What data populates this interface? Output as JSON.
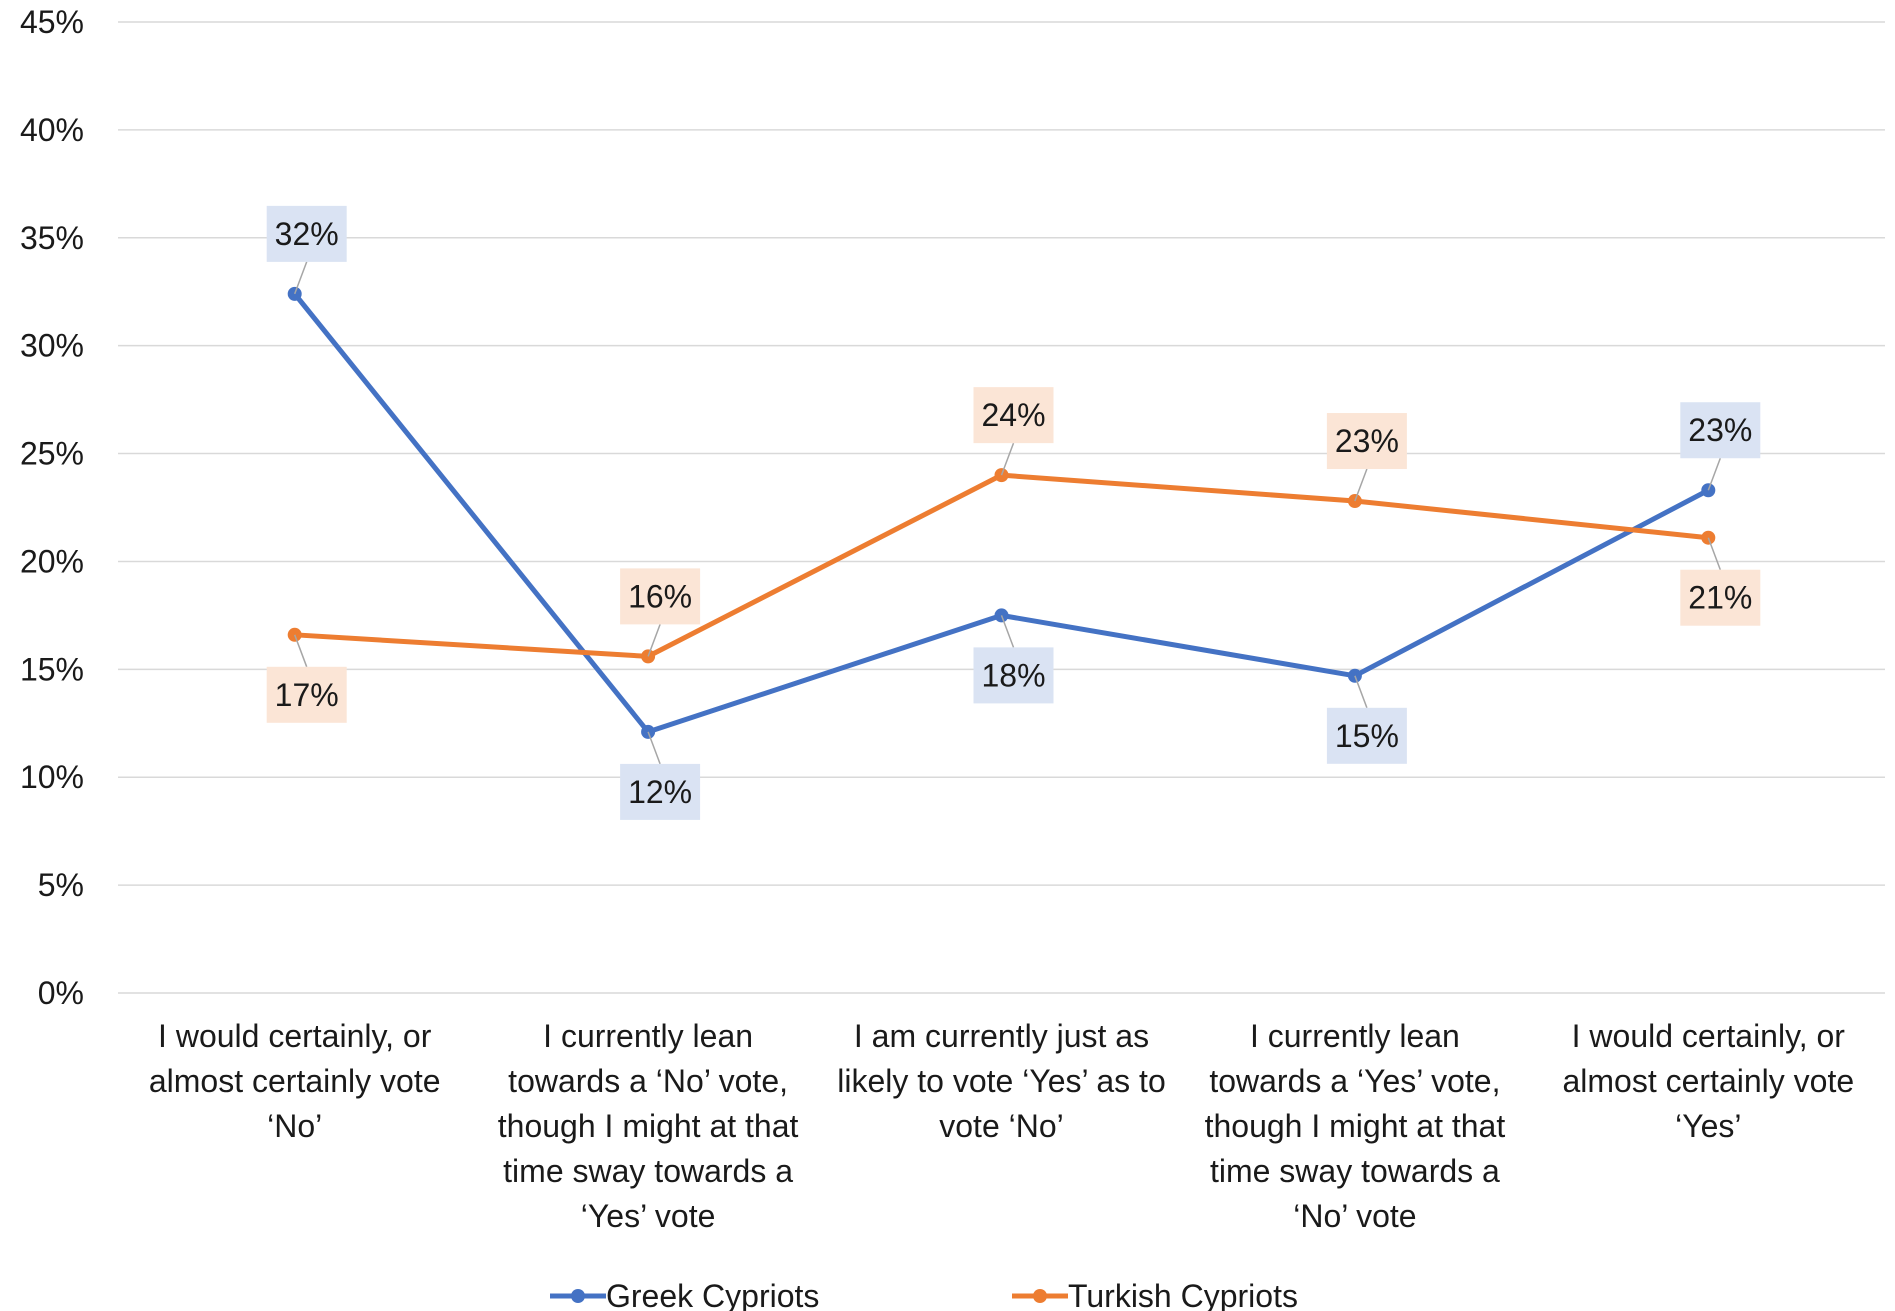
{
  "chart_data": {
    "type": "line",
    "title": "",
    "xlabel": "",
    "ylabel": "",
    "ylim": [
      0,
      45
    ],
    "yticks": [
      "0%",
      "5%",
      "10%",
      "15%",
      "20%",
      "25%",
      "30%",
      "35%",
      "40%",
      "45%"
    ],
    "ytick_values": [
      0,
      5,
      10,
      15,
      20,
      25,
      30,
      35,
      40,
      45
    ],
    "grid": true,
    "legend_position": "bottom",
    "categories": [
      [
        "I would certainly, or",
        "almost certainly vote",
        "‘No’"
      ],
      [
        "I currently lean",
        "towards a ‘No’ vote,",
        "though I might at that",
        "time sway towards a",
        "‘Yes’ vote"
      ],
      [
        "I am currently just as",
        "likely to vote ‘Yes’ as to",
        "vote ‘No’"
      ],
      [
        "I currently lean",
        "towards a ‘Yes’ vote,",
        "though I might at that",
        "time sway towards a",
        "‘No’ vote"
      ],
      [
        "I would certainly, or",
        "almost certainly vote",
        "‘Yes’"
      ]
    ],
    "series": [
      {
        "name": "Greek Cypriots",
        "color": "#4472c4",
        "label_bg": "#dae3f3",
        "values": [
          32.4,
          12.1,
          17.5,
          14.7,
          23.3
        ],
        "labels": [
          "32%",
          "12%",
          "18%",
          "15%",
          "23%"
        ],
        "label_side": [
          "above",
          "below",
          "below",
          "below",
          "above"
        ]
      },
      {
        "name": "Turkish Cypriots",
        "color": "#ed7d31",
        "label_bg": "#fbe5d6",
        "values": [
          16.6,
          15.6,
          24.0,
          22.8,
          21.1
        ],
        "labels": [
          "17%",
          "16%",
          "24%",
          "23%",
          "21%"
        ],
        "label_side": [
          "below",
          "above",
          "above",
          "above",
          "below"
        ]
      }
    ]
  }
}
